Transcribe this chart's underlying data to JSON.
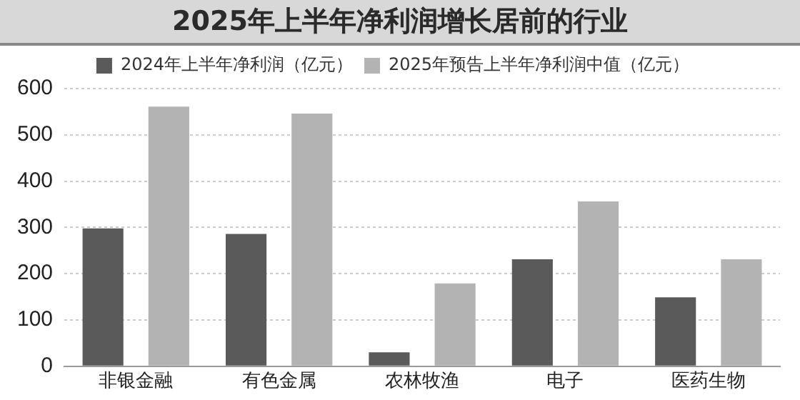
{
  "chart_data": {
    "type": "bar",
    "title": "2025年上半年净利润增长居前的行业",
    "categories": [
      "非银金融",
      "有色金属",
      "农林牧渔",
      "电子",
      "医药生物"
    ],
    "series": [
      {
        "name": "2024年上半年净利润（亿元）",
        "color": "#5a5a5a",
        "values": [
          298,
          286,
          30,
          231,
          149
        ]
      },
      {
        "name": "2025年预告上半年净利润中值（亿元）",
        "color": "#b3b3b3",
        "values": [
          561,
          546,
          179,
          356,
          231
        ]
      }
    ],
    "ylim": [
      0,
      600
    ],
    "yticks": [
      0,
      100,
      200,
      300,
      400,
      500,
      600
    ],
    "grid": "y",
    "legend": "top"
  }
}
